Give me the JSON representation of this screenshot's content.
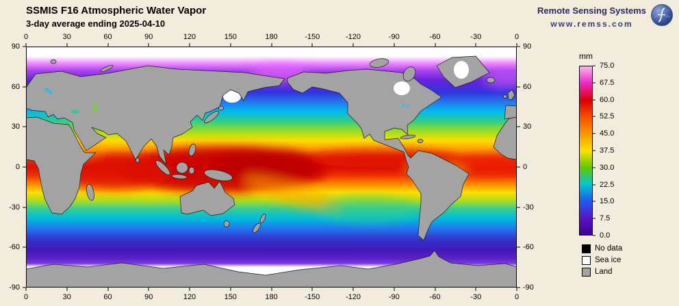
{
  "page": {
    "background_color": "#f1ecdb"
  },
  "header": {
    "title": "SSMIS F16 Atmospheric Water Vapor",
    "subtitle": "3-day average ending 2025-04-10"
  },
  "brand": {
    "name": "Remote Sensing Systems",
    "url": "www.remss.com"
  },
  "map": {
    "lon_ticks": [
      "0",
      "30",
      "60",
      "90",
      "120",
      "150",
      "180",
      "-150",
      "-120",
      "-90",
      "-60",
      "-30",
      "0"
    ],
    "lat_ticks": [
      "90",
      "60",
      "30",
      "0",
      "-30",
      "-60",
      "-90"
    ],
    "land_color": "#a3a3a3",
    "sea_ice_color": "#ffffff",
    "no_data_color": "#000000"
  },
  "colorbar": {
    "unit": "mm",
    "min": 0.0,
    "max": 75.0,
    "ticks": [
      "75.0",
      "67.5",
      "60.0",
      "52.5",
      "45.0",
      "37.5",
      "30.0",
      "22.5",
      "15.0",
      "7.5",
      "0.0"
    ],
    "stops": [
      [
        "0%",
        "#ffb4f5"
      ],
      [
        "10%",
        "#eb28c8"
      ],
      [
        "20%",
        "#dc0000"
      ],
      [
        "30%",
        "#f55000"
      ],
      [
        "40%",
        "#fa9600"
      ],
      [
        "50%",
        "#fae100"
      ],
      [
        "60%",
        "#64c800"
      ],
      [
        "70%",
        "#00c8d2"
      ],
      [
        "80%",
        "#1e5af0"
      ],
      [
        "90%",
        "#5a14c8"
      ],
      [
        "100%",
        "#3c0096"
      ]
    ]
  },
  "legend": {
    "items": [
      {
        "label": "No data",
        "color": "#000000"
      },
      {
        "label": "Sea ice",
        "color": "#ffffff"
      },
      {
        "label": "Land",
        "color": "#a3a3a3"
      }
    ]
  }
}
